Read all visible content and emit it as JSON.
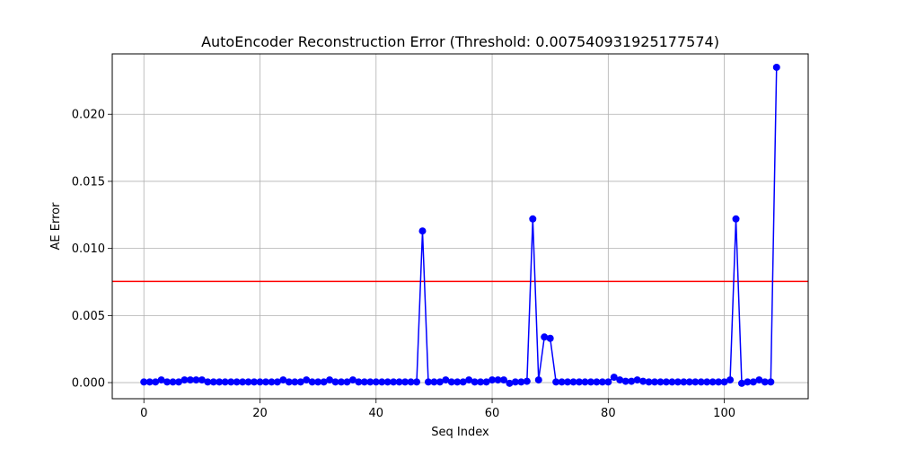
{
  "chart_data": {
    "type": "line",
    "title": "AutoEncoder Reconstruction Error (Threshold: 0.007540931925177574)",
    "xlabel": "Seq Index",
    "ylabel": "AE Error",
    "xlim": [
      -5.45,
      114.45
    ],
    "ylim": [
      -0.0012,
      0.0245
    ],
    "xticks": [
      0,
      20,
      40,
      60,
      80,
      100
    ],
    "xtick_labels": [
      "0",
      "20",
      "40",
      "60",
      "80",
      "100"
    ],
    "yticks": [
      0.0,
      0.005,
      0.01,
      0.015,
      0.02
    ],
    "ytick_labels": [
      "0.000",
      "0.005",
      "0.010",
      "0.015",
      "0.020"
    ],
    "grid": true,
    "threshold": 0.007540931925177574,
    "threshold_color": "#ff0000",
    "series_color": "#0000ff",
    "series": [
      {
        "x": [
          0,
          1,
          2,
          3,
          4,
          5,
          6,
          7,
          8,
          9,
          10,
          11,
          12,
          13,
          14,
          15,
          16,
          17,
          18,
          19,
          20,
          21,
          22,
          23,
          24,
          25,
          26,
          27,
          28,
          29,
          30,
          31,
          32,
          33,
          34,
          35,
          36,
          37,
          38,
          39,
          40,
          41,
          42,
          43,
          44,
          45,
          46,
          47,
          48,
          49,
          50,
          51,
          52,
          53,
          54,
          55,
          56,
          57,
          58,
          59,
          60,
          61,
          62,
          63,
          64,
          65,
          66,
          67,
          68,
          69,
          70,
          71,
          72,
          73,
          74,
          75,
          76,
          77,
          78,
          79,
          80,
          81,
          82,
          83,
          84,
          85,
          86,
          87,
          88,
          89,
          90,
          91,
          92,
          93,
          94,
          95,
          96,
          97,
          98,
          99,
          100,
          101,
          102,
          103,
          104,
          105,
          106,
          107,
          108,
          109
        ],
        "values": [
          5e-05,
          5e-05,
          5e-05,
          0.0002,
          5e-05,
          5e-05,
          5e-05,
          0.0002,
          0.0002,
          0.0002,
          0.0002,
          5e-05,
          5e-05,
          5e-05,
          5e-05,
          5e-05,
          5e-05,
          5e-05,
          5e-05,
          5e-05,
          5e-05,
          5e-05,
          5e-05,
          5e-05,
          0.0002,
          5e-05,
          5e-05,
          5e-05,
          0.0002,
          5e-05,
          5e-05,
          5e-05,
          0.0002,
          5e-05,
          5e-05,
          5e-05,
          0.0002,
          5e-05,
          5e-05,
          5e-05,
          5e-05,
          5e-05,
          5e-05,
          5e-05,
          5e-05,
          5e-05,
          5e-05,
          5e-05,
          0.0113,
          5e-05,
          5e-05,
          5e-05,
          0.0002,
          5e-05,
          5e-05,
          5e-05,
          0.0002,
          5e-05,
          5e-05,
          5e-05,
          0.0002,
          0.0002,
          0.0002,
          -5e-05,
          5e-05,
          5e-05,
          0.0001,
          0.0122,
          0.0002,
          0.0034,
          0.0033,
          5e-05,
          5e-05,
          5e-05,
          5e-05,
          5e-05,
          5e-05,
          5e-05,
          5e-05,
          5e-05,
          5e-05,
          0.0004,
          0.0002,
          0.0001,
          0.0001,
          0.0002,
          0.0001,
          5e-05,
          5e-05,
          5e-05,
          5e-05,
          5e-05,
          5e-05,
          5e-05,
          5e-05,
          5e-05,
          5e-05,
          5e-05,
          5e-05,
          5e-05,
          5e-05,
          0.0002,
          0.0122,
          -5e-05,
          5e-05,
          5e-05,
          0.0002,
          5e-05,
          5e-05,
          0.0235
        ]
      }
    ]
  }
}
